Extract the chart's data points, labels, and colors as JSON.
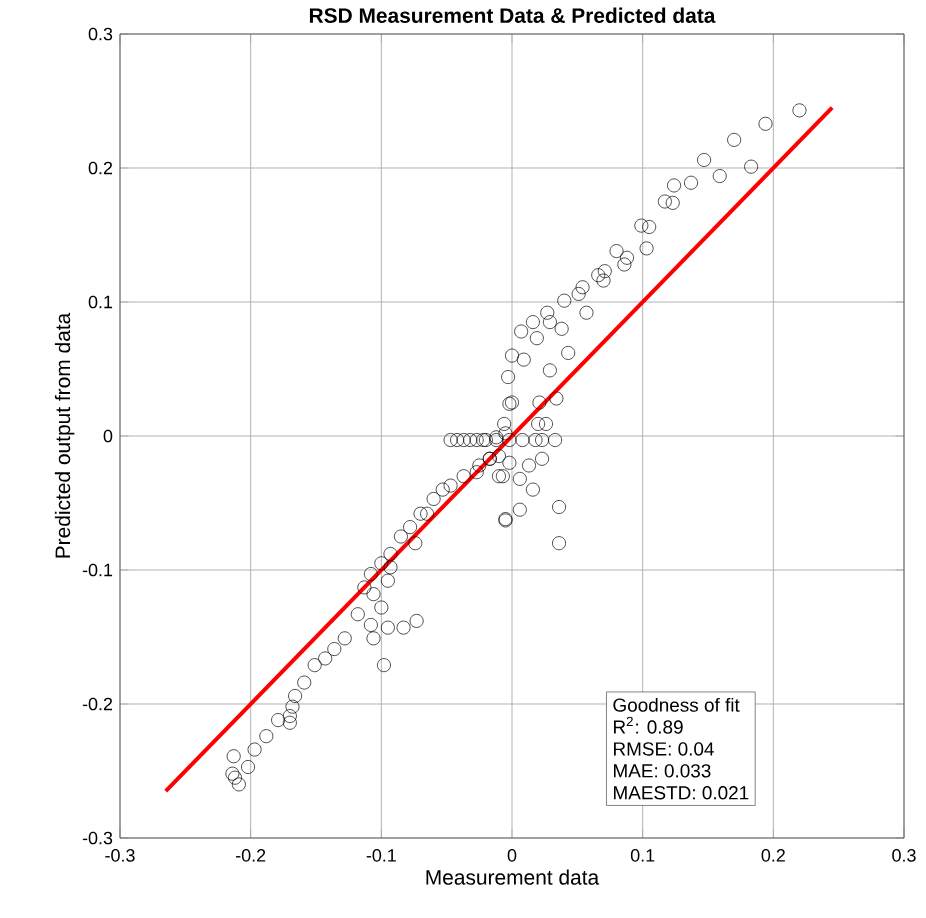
{
  "chart_data": {
    "type": "scatter",
    "title": "RSD Measurement Data & Predicted data",
    "xlabel": "Measurement data",
    "ylabel": "Predicted output from data",
    "xlim": [
      -0.3,
      0.3
    ],
    "ylim": [
      -0.3,
      0.3
    ],
    "xticks": [
      -0.3,
      -0.2,
      -0.1,
      0,
      0.1,
      0.2,
      0.3
    ],
    "yticks": [
      -0.3,
      -0.2,
      -0.1,
      0,
      0.1,
      0.2,
      0.3
    ],
    "grid": true,
    "series": [
      {
        "color": "#000000",
        "marker": "circle",
        "x": [
          0.22,
          0.194,
          0.17,
          0.183,
          0.147,
          0.159,
          0.137,
          0.124,
          0.123,
          0.117,
          0.099,
          0.105,
          0.103,
          0.08,
          0.088,
          0.086,
          0.071,
          0.066,
          0.07,
          0.054,
          0.051,
          0.04,
          0.057,
          0.027,
          0.016,
          0.029,
          0.038,
          0.007,
          0.019,
          0.043,
          0.0,
          0.009,
          -0.003,
          0.029,
          0.0,
          0.021,
          0.034,
          -0.006,
          0.02,
          0.026,
          -0.002,
          -0.047,
          -0.042,
          -0.037,
          -0.032,
          -0.027,
          -0.02,
          -0.012,
          -0.005,
          -0.01,
          -0.017,
          -0.025,
          -0.01,
          -0.005,
          -0.037,
          -0.047,
          -0.06,
          -0.07,
          -0.078,
          -0.085,
          -0.074,
          -0.093,
          -0.1,
          -0.108,
          -0.095,
          -0.113,
          -0.1,
          -0.118,
          -0.108,
          -0.095,
          -0.083,
          -0.073,
          -0.106,
          -0.098,
          -0.128,
          -0.136,
          -0.143,
          -0.151,
          -0.159,
          -0.166,
          -0.168,
          -0.17,
          -0.17,
          -0.179,
          -0.188,
          -0.197,
          -0.202,
          -0.213,
          -0.212,
          -0.209,
          -0.214,
          -0.053,
          -0.065,
          -0.093,
          -0.106,
          -0.022,
          -0.012,
          -0.002,
          0.008,
          0.018,
          0.023,
          0.033,
          -0.017,
          -0.002,
          0.013,
          0.023,
          0.006,
          0.016,
          -0.007,
          0.036,
          0.006,
          -0.005,
          0.036,
          -0.027
        ],
        "values": [
          0.243,
          0.233,
          0.221,
          0.201,
          0.206,
          0.194,
          0.189,
          0.187,
          0.174,
          0.175,
          0.157,
          0.156,
          0.14,
          0.138,
          0.133,
          0.128,
          0.123,
          0.12,
          0.116,
          0.111,
          0.106,
          0.101,
          0.092,
          0.092,
          0.085,
          0.085,
          0.08,
          0.078,
          0.073,
          0.062,
          0.06,
          0.057,
          0.044,
          0.049,
          0.025,
          0.025,
          0.028,
          0.009,
          0.009,
          0.009,
          0.024,
          -0.003,
          -0.003,
          -0.003,
          -0.003,
          -0.003,
          -0.003,
          -0.001,
          0.002,
          -0.015,
          -0.017,
          -0.022,
          -0.03,
          -0.063,
          -0.03,
          -0.037,
          -0.047,
          -0.058,
          -0.068,
          -0.075,
          -0.08,
          -0.088,
          -0.095,
          -0.103,
          -0.108,
          -0.113,
          -0.128,
          -0.133,
          -0.141,
          -0.143,
          -0.143,
          -0.138,
          -0.151,
          -0.171,
          -0.151,
          -0.159,
          -0.166,
          -0.171,
          -0.184,
          -0.194,
          -0.202,
          -0.209,
          -0.214,
          -0.212,
          -0.224,
          -0.234,
          -0.247,
          -0.239,
          -0.255,
          -0.26,
          -0.252,
          -0.04,
          -0.058,
          -0.098,
          -0.118,
          -0.003,
          -0.003,
          -0.003,
          -0.003,
          -0.003,
          -0.003,
          -0.003,
          -0.017,
          -0.02,
          -0.022,
          -0.017,
          -0.032,
          -0.04,
          -0.03,
          -0.053,
          -0.055,
          -0.062,
          -0.08,
          -0.027
        ]
      },
      {
        "type": "line",
        "color": "#ff0000",
        "line_style": "solid",
        "x": [
          -0.265,
          0.245
        ],
        "values": [
          -0.265,
          0.245
        ]
      }
    ],
    "annotations": [
      "Goodness of fit",
      "R$^{2}$: 0.89",
      "RMSE: 0.04",
      "MAE: 0.033",
      "MAESTD: 0.021"
    ]
  }
}
